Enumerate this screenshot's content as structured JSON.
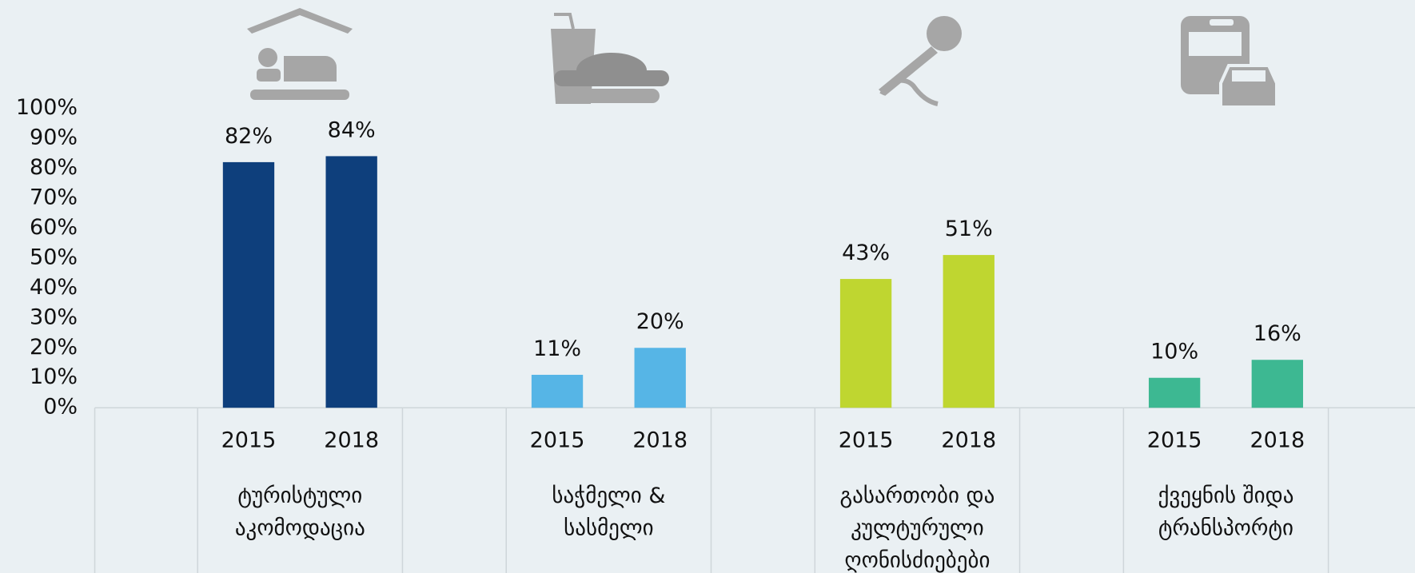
{
  "chart_data": {
    "type": "bar",
    "categories": [
      "ტურისტული აკომოდაცია",
      "საჭმელი & სასმელი",
      "გასართობი და კულტურული ღონისძიებები",
      "ქვეყნის შიდა ტრანსპორტი"
    ],
    "colors": [
      "#0e3f7c",
      "#56b5e6",
      "#bfd630",
      "#3db892"
    ],
    "series": [
      {
        "name": "2015",
        "values": [
          82,
          11,
          43,
          10
        ],
        "value_labels": [
          "82%",
          "11%",
          "43%",
          "10%"
        ]
      },
      {
        "name": "2018",
        "values": [
          84,
          20,
          51,
          16
        ],
        "value_labels": [
          "84%",
          "20%",
          "51%",
          "16%"
        ]
      }
    ],
    "ylim": [
      0,
      100
    ],
    "yticks": [
      {
        "value": 0,
        "label": "0%"
      },
      {
        "value": 10,
        "label": "10%"
      },
      {
        "value": 20,
        "label": "20%"
      },
      {
        "value": 30,
        "label": "30%"
      },
      {
        "value": 40,
        "label": "40%"
      },
      {
        "value": 50,
        "label": "50%"
      },
      {
        "value": 60,
        "label": "60%"
      },
      {
        "value": 70,
        "label": "70%"
      },
      {
        "value": 80,
        "label": "80%"
      },
      {
        "value": 90,
        "label": "90%"
      },
      {
        "value": 100,
        "label": "100%"
      }
    ],
    "grid": false
  }
}
